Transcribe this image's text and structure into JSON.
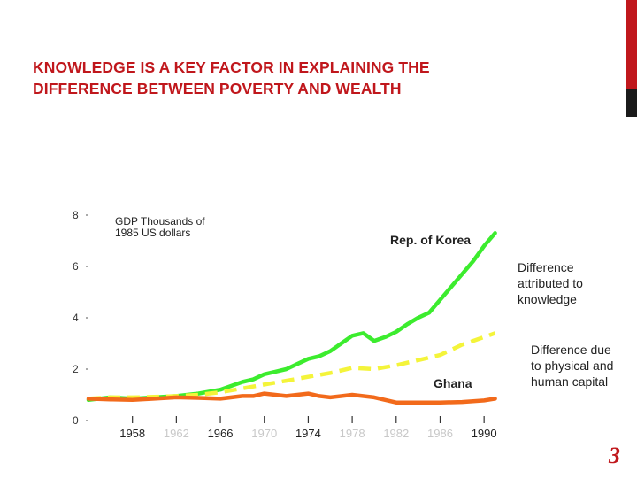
{
  "slide": {
    "title_line1": "KNOWLEDGE IS A KEY FACTOR IN EXPLAINING  THE",
    "title_line2": "DIFFERENCE BETWEEN POVERTY AND WEALTH",
    "page_number": "3"
  },
  "colors": {
    "title": "#c0171c",
    "accent_bar": "#c0171c",
    "dark_bar": "#1a1a1a",
    "korea": "#3cec2e",
    "physical_human_capital": "#f4f43a",
    "ghana": "#f26a1b"
  },
  "chart_data": {
    "type": "line",
    "ylabel_line1": "GDP Thousands of",
    "ylabel_line2": "1985 US dollars",
    "ylim": [
      0,
      8
    ],
    "yticks": [
      "0",
      "2",
      "4",
      "6",
      "8"
    ],
    "xlim": [
      1954,
      1992
    ],
    "xticks": [
      {
        "label": "1958",
        "year": 1958,
        "faded": false
      },
      {
        "label": "1962",
        "year": 1962,
        "faded": true
      },
      {
        "label": "1966",
        "year": 1966,
        "faded": false
      },
      {
        "label": "1970",
        "year": 1970,
        "faded": true
      },
      {
        "label": "1974",
        "year": 1974,
        "faded": false
      },
      {
        "label": "1978",
        "year": 1978,
        "faded": true
      },
      {
        "label": "1982",
        "year": 1982,
        "faded": true
      },
      {
        "label": "1986",
        "year": 1986,
        "faded": true
      },
      {
        "label": "1990",
        "year": 1990,
        "faded": false
      }
    ],
    "series": [
      {
        "name": "Rep. of Korea",
        "color": "#3cec2e",
        "style": "solid",
        "x": [
          1954,
          1956,
          1958,
          1960,
          1962,
          1964,
          1966,
          1968,
          1969,
          1970,
          1971,
          1972,
          1973,
          1974,
          1975,
          1976,
          1977,
          1978,
          1979,
          1980,
          1981,
          1982,
          1983,
          1984,
          1985,
          1986,
          1987,
          1988,
          1989,
          1990,
          1991
        ],
        "y": [
          0.8,
          0.9,
          0.85,
          0.9,
          0.95,
          1.05,
          1.2,
          1.5,
          1.6,
          1.8,
          1.9,
          2.0,
          2.2,
          2.4,
          2.5,
          2.7,
          3.0,
          3.3,
          3.4,
          3.1,
          3.25,
          3.45,
          3.75,
          4.0,
          4.2,
          4.7,
          5.2,
          5.7,
          6.2,
          6.8,
          7.3
        ]
      },
      {
        "name": "Difference due to physical  and human capital",
        "color": "#f4f43a",
        "style": "dashed",
        "x": [
          1954,
          1956,
          1958,
          1960,
          1962,
          1964,
          1966,
          1968,
          1970,
          1972,
          1974,
          1976,
          1978,
          1980,
          1982,
          1984,
          1986,
          1988,
          1990,
          1991
        ],
        "y": [
          0.85,
          0.9,
          0.9,
          0.92,
          0.95,
          1.0,
          1.1,
          1.25,
          1.4,
          1.55,
          1.7,
          1.85,
          2.05,
          2.0,
          2.15,
          2.35,
          2.55,
          2.95,
          3.25,
          3.4
        ]
      },
      {
        "name": "Ghana",
        "color": "#f26a1b",
        "style": "solid",
        "x": [
          1954,
          1956,
          1958,
          1960,
          1962,
          1964,
          1966,
          1968,
          1969,
          1970,
          1972,
          1973,
          1974,
          1975,
          1976,
          1978,
          1980,
          1982,
          1984,
          1986,
          1988,
          1990,
          1991
        ],
        "y": [
          0.85,
          0.82,
          0.8,
          0.85,
          0.9,
          0.88,
          0.85,
          0.95,
          0.95,
          1.05,
          0.95,
          1.0,
          1.05,
          0.95,
          0.9,
          1.0,
          0.9,
          0.7,
          0.7,
          0.7,
          0.72,
          0.78,
          0.85
        ]
      }
    ],
    "annotations": {
      "korea_label": "Rep. of Korea",
      "ghana_label": "Ghana",
      "knowledge_line1": "Difference",
      "knowledge_line2": "attributed to",
      "knowledge_line3": "knowledge",
      "capital_line1": "Difference due",
      "capital_line2": "to physical  and",
      "capital_line3": "human capital"
    }
  }
}
